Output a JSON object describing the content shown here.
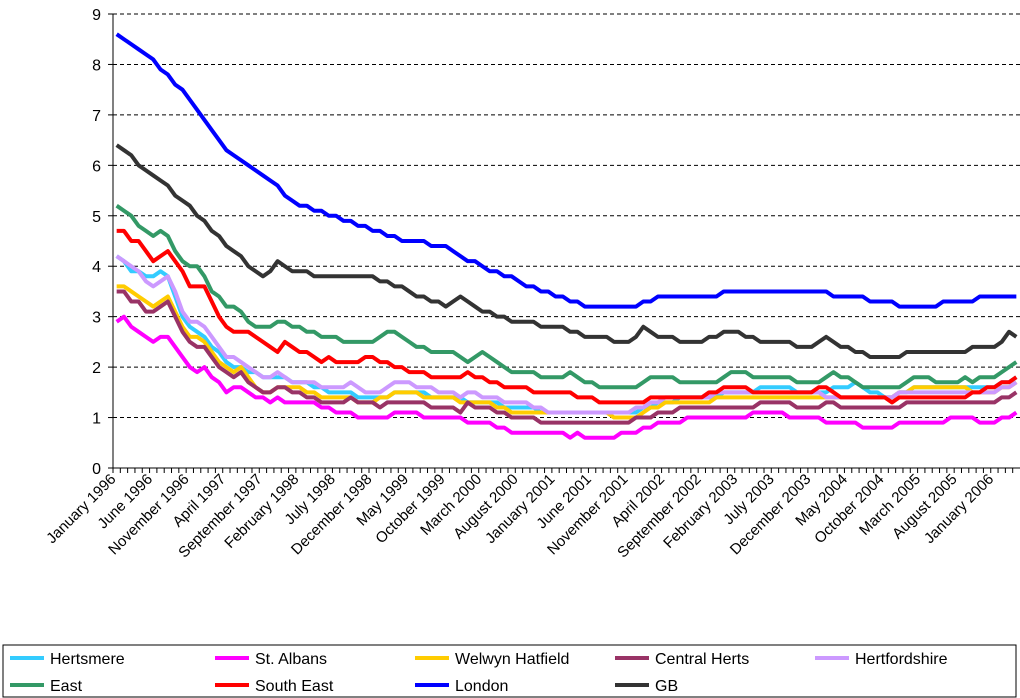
{
  "chart_data": {
    "type": "line",
    "categories": [
      "January 1996",
      null,
      null,
      null,
      null,
      "June 1996",
      null,
      null,
      null,
      null,
      "November 1996",
      null,
      null,
      null,
      null,
      "April 1997",
      null,
      null,
      null,
      null,
      "September 1997",
      null,
      null,
      null,
      null,
      "February 1998",
      null,
      null,
      null,
      null,
      "July 1998",
      null,
      null,
      null,
      null,
      "December 1998",
      null,
      null,
      null,
      null,
      "May 1999",
      null,
      null,
      null,
      null,
      "October 1999",
      null,
      null,
      null,
      null,
      "March 2000",
      null,
      null,
      null,
      null,
      "August 2000",
      null,
      null,
      null,
      null,
      "January 2001",
      null,
      null,
      null,
      null,
      "June 2001",
      null,
      null,
      null,
      null,
      "November 2001",
      null,
      null,
      null,
      null,
      "April 2002",
      null,
      null,
      null,
      null,
      "September 2002",
      null,
      null,
      null,
      null,
      "February 2003",
      null,
      null,
      null,
      null,
      "July 2003",
      null,
      null,
      null,
      null,
      "December 2003",
      null,
      null,
      null,
      null,
      "May 2004",
      null,
      null,
      null,
      null,
      "October 2004",
      null,
      null,
      null,
      null,
      "March 2005",
      null,
      null,
      null,
      null,
      "August 2005",
      null,
      null,
      null,
      null,
      "January 2006",
      null,
      null,
      null
    ],
    "ylim": [
      0,
      9
    ],
    "yticks": [
      0,
      1,
      2,
      3,
      4,
      5,
      6,
      7,
      8,
      9
    ],
    "grid": true,
    "legend": "bottom",
    "series": [
      {
        "name": "Hertsmere",
        "color": "#33ccff",
        "values": [
          4.2,
          4.1,
          3.9,
          3.9,
          3.8,
          3.8,
          3.9,
          3.8,
          3.4,
          3.0,
          2.8,
          2.7,
          2.6,
          2.4,
          2.3,
          2.1,
          2.0,
          2.0,
          1.9,
          1.9,
          1.8,
          1.8,
          1.8,
          1.8,
          1.7,
          1.7,
          1.7,
          1.6,
          1.6,
          1.5,
          1.5,
          1.5,
          1.5,
          1.4,
          1.4,
          1.4,
          1.4,
          1.4,
          1.5,
          1.5,
          1.5,
          1.5,
          1.5,
          1.4,
          1.4,
          1.4,
          1.4,
          1.4,
          1.3,
          1.3,
          1.3,
          1.3,
          1.3,
          1.2,
          1.2,
          1.2,
          1.2,
          1.2,
          1.1,
          1.1,
          1.1,
          1.1,
          1.1,
          1.1,
          1.1,
          1.1,
          1.1,
          1.1,
          1.1,
          1.1,
          1.1,
          1.1,
          1.2,
          1.2,
          1.3,
          1.3,
          1.3,
          1.4,
          1.4,
          1.4,
          1.4,
          1.4,
          1.4,
          1.5,
          1.5,
          1.5,
          1.5,
          1.5,
          1.6,
          1.6,
          1.6,
          1.6,
          1.6,
          1.5,
          1.5,
          1.5,
          1.5,
          1.5,
          1.6,
          1.6,
          1.6,
          1.7,
          1.6,
          1.5,
          1.5,
          1.4,
          1.4,
          1.5,
          1.5,
          1.6,
          1.6,
          1.6,
          1.6,
          1.6,
          1.6,
          1.6,
          1.6,
          1.6,
          1.6,
          1.6,
          1.6,
          1.7,
          1.7,
          1.8
        ]
      },
      {
        "name": "St. Albans",
        "color": "#ff00ff",
        "values": [
          2.9,
          3.0,
          2.8,
          2.7,
          2.6,
          2.5,
          2.6,
          2.6,
          2.4,
          2.2,
          2.0,
          1.9,
          2.0,
          1.8,
          1.7,
          1.5,
          1.6,
          1.6,
          1.5,
          1.4,
          1.4,
          1.3,
          1.4,
          1.3,
          1.3,
          1.3,
          1.3,
          1.3,
          1.2,
          1.2,
          1.1,
          1.1,
          1.1,
          1.0,
          1.0,
          1.0,
          1.0,
          1.0,
          1.1,
          1.1,
          1.1,
          1.1,
          1.0,
          1.0,
          1.0,
          1.0,
          1.0,
          1.0,
          0.9,
          0.9,
          0.9,
          0.9,
          0.8,
          0.8,
          0.7,
          0.7,
          0.7,
          0.7,
          0.7,
          0.7,
          0.7,
          0.7,
          0.6,
          0.7,
          0.6,
          0.6,
          0.6,
          0.6,
          0.6,
          0.7,
          0.7,
          0.7,
          0.8,
          0.8,
          0.9,
          0.9,
          0.9,
          0.9,
          1.0,
          1.0,
          1.0,
          1.0,
          1.0,
          1.0,
          1.0,
          1.0,
          1.0,
          1.1,
          1.1,
          1.1,
          1.1,
          1.1,
          1.0,
          1.0,
          1.0,
          1.0,
          1.0,
          0.9,
          0.9,
          0.9,
          0.9,
          0.9,
          0.8,
          0.8,
          0.8,
          0.8,
          0.8,
          0.9,
          0.9,
          0.9,
          0.9,
          0.9,
          0.9,
          0.9,
          1.0,
          1.0,
          1.0,
          1.0,
          0.9,
          0.9,
          0.9,
          1.0,
          1.0,
          1.1
        ]
      },
      {
        "name": "Welwyn Hatfield",
        "color": "#ffcc00",
        "values": [
          3.6,
          3.6,
          3.5,
          3.4,
          3.3,
          3.2,
          3.3,
          3.4,
          3.1,
          2.8,
          2.6,
          2.6,
          2.5,
          2.3,
          2.1,
          2.0,
          1.9,
          2.0,
          1.8,
          1.6,
          1.5,
          1.5,
          1.6,
          1.6,
          1.6,
          1.6,
          1.5,
          1.5,
          1.4,
          1.4,
          1.4,
          1.4,
          1.4,
          1.3,
          1.3,
          1.3,
          1.4,
          1.4,
          1.5,
          1.5,
          1.5,
          1.5,
          1.4,
          1.4,
          1.4,
          1.4,
          1.4,
          1.3,
          1.3,
          1.3,
          1.3,
          1.3,
          1.2,
          1.2,
          1.1,
          1.1,
          1.1,
          1.1,
          1.1,
          1.1,
          1.1,
          1.1,
          1.1,
          1.1,
          1.1,
          1.1,
          1.1,
          1.1,
          1.0,
          1.0,
          1.0,
          1.0,
          1.1,
          1.2,
          1.2,
          1.3,
          1.3,
          1.3,
          1.3,
          1.3,
          1.3,
          1.3,
          1.4,
          1.4,
          1.4,
          1.4,
          1.4,
          1.4,
          1.4,
          1.4,
          1.4,
          1.4,
          1.4,
          1.4,
          1.4,
          1.4,
          1.4,
          1.4,
          1.4,
          1.4,
          1.4,
          1.4,
          1.4,
          1.4,
          1.4,
          1.4,
          1.4,
          1.5,
          1.5,
          1.6,
          1.6,
          1.6,
          1.6,
          1.6,
          1.6,
          1.6,
          1.6,
          1.5,
          1.5,
          1.5,
          1.5,
          1.6,
          1.6,
          1.7
        ]
      },
      {
        "name": "Central Herts",
        "color": "#993366",
        "values": [
          3.5,
          3.5,
          3.3,
          3.3,
          3.1,
          3.1,
          3.2,
          3.3,
          3.0,
          2.7,
          2.5,
          2.4,
          2.4,
          2.2,
          2.0,
          1.9,
          1.8,
          1.9,
          1.7,
          1.6,
          1.5,
          1.5,
          1.6,
          1.6,
          1.5,
          1.5,
          1.4,
          1.4,
          1.3,
          1.3,
          1.3,
          1.3,
          1.4,
          1.3,
          1.3,
          1.3,
          1.2,
          1.3,
          1.3,
          1.3,
          1.3,
          1.3,
          1.3,
          1.2,
          1.2,
          1.2,
          1.2,
          1.1,
          1.3,
          1.2,
          1.2,
          1.2,
          1.1,
          1.1,
          1.0,
          1.0,
          1.0,
          1.0,
          0.9,
          0.9,
          0.9,
          0.9,
          0.9,
          0.9,
          0.9,
          0.9,
          0.9,
          0.9,
          0.9,
          0.9,
          0.9,
          1.0,
          1.0,
          1.0,
          1.1,
          1.1,
          1.1,
          1.2,
          1.2,
          1.2,
          1.2,
          1.2,
          1.2,
          1.2,
          1.2,
          1.2,
          1.2,
          1.2,
          1.3,
          1.3,
          1.3,
          1.3,
          1.3,
          1.2,
          1.2,
          1.2,
          1.2,
          1.3,
          1.3,
          1.2,
          1.2,
          1.2,
          1.2,
          1.2,
          1.2,
          1.2,
          1.2,
          1.2,
          1.3,
          1.3,
          1.3,
          1.3,
          1.3,
          1.3,
          1.3,
          1.3,
          1.3,
          1.3,
          1.3,
          1.3,
          1.3,
          1.4,
          1.4,
          1.5
        ]
      },
      {
        "name": "Hertfordshire",
        "color": "#cc99ff",
        "values": [
          4.2,
          4.1,
          4.0,
          3.9,
          3.7,
          3.6,
          3.7,
          3.8,
          3.5,
          3.1,
          2.9,
          2.9,
          2.8,
          2.6,
          2.4,
          2.2,
          2.2,
          2.1,
          2.0,
          1.9,
          1.8,
          1.8,
          1.9,
          1.8,
          1.7,
          1.7,
          1.7,
          1.7,
          1.6,
          1.6,
          1.6,
          1.6,
          1.7,
          1.6,
          1.5,
          1.5,
          1.5,
          1.6,
          1.7,
          1.7,
          1.7,
          1.6,
          1.6,
          1.6,
          1.5,
          1.5,
          1.5,
          1.4,
          1.5,
          1.5,
          1.4,
          1.4,
          1.4,
          1.3,
          1.3,
          1.3,
          1.3,
          1.2,
          1.2,
          1.1,
          1.1,
          1.1,
          1.1,
          1.1,
          1.1,
          1.1,
          1.1,
          1.1,
          1.1,
          1.1,
          1.1,
          1.2,
          1.2,
          1.3,
          1.3,
          1.4,
          1.4,
          1.4,
          1.4,
          1.4,
          1.4,
          1.4,
          1.5,
          1.5,
          1.5,
          1.5,
          1.5,
          1.5,
          1.5,
          1.5,
          1.5,
          1.5,
          1.5,
          1.5,
          1.5,
          1.5,
          1.5,
          1.4,
          1.4,
          1.4,
          1.4,
          1.4,
          1.4,
          1.4,
          1.4,
          1.4,
          1.4,
          1.5,
          1.5,
          1.5,
          1.5,
          1.5,
          1.5,
          1.5,
          1.5,
          1.5,
          1.5,
          1.5,
          1.5,
          1.5,
          1.5,
          1.6,
          1.6,
          1.7
        ]
      },
      {
        "name": "East",
        "color": "#339966",
        "values": [
          5.2,
          5.1,
          5.0,
          4.8,
          4.7,
          4.6,
          4.7,
          4.6,
          4.3,
          4.1,
          4.0,
          4.0,
          3.8,
          3.5,
          3.4,
          3.2,
          3.2,
          3.1,
          2.9,
          2.8,
          2.8,
          2.8,
          2.9,
          2.9,
          2.8,
          2.8,
          2.7,
          2.7,
          2.6,
          2.6,
          2.6,
          2.5,
          2.5,
          2.5,
          2.5,
          2.5,
          2.6,
          2.7,
          2.7,
          2.6,
          2.5,
          2.4,
          2.4,
          2.3,
          2.3,
          2.3,
          2.3,
          2.2,
          2.1,
          2.2,
          2.3,
          2.2,
          2.1,
          2.0,
          1.9,
          1.9,
          1.9,
          1.9,
          1.8,
          1.8,
          1.8,
          1.8,
          1.9,
          1.8,
          1.7,
          1.7,
          1.6,
          1.6,
          1.6,
          1.6,
          1.6,
          1.6,
          1.7,
          1.8,
          1.8,
          1.8,
          1.8,
          1.7,
          1.7,
          1.7,
          1.7,
          1.7,
          1.7,
          1.8,
          1.9,
          1.9,
          1.9,
          1.8,
          1.8,
          1.8,
          1.8,
          1.8,
          1.8,
          1.7,
          1.7,
          1.7,
          1.7,
          1.8,
          1.9,
          1.8,
          1.8,
          1.7,
          1.6,
          1.6,
          1.6,
          1.6,
          1.6,
          1.6,
          1.7,
          1.8,
          1.8,
          1.8,
          1.7,
          1.7,
          1.7,
          1.7,
          1.8,
          1.7,
          1.8,
          1.8,
          1.8,
          1.9,
          2.0,
          2.1
        ]
      },
      {
        "name": "South East",
        "color": "#ff0000",
        "values": [
          4.7,
          4.7,
          4.5,
          4.5,
          4.3,
          4.1,
          4.2,
          4.3,
          4.1,
          3.9,
          3.6,
          3.6,
          3.6,
          3.3,
          3.0,
          2.8,
          2.7,
          2.7,
          2.7,
          2.6,
          2.5,
          2.4,
          2.3,
          2.5,
          2.4,
          2.3,
          2.3,
          2.2,
          2.1,
          2.2,
          2.1,
          2.1,
          2.1,
          2.1,
          2.2,
          2.2,
          2.1,
          2.1,
          2.0,
          2.0,
          1.9,
          1.9,
          1.9,
          1.8,
          1.8,
          1.8,
          1.8,
          1.8,
          1.9,
          1.8,
          1.8,
          1.7,
          1.7,
          1.6,
          1.6,
          1.6,
          1.6,
          1.5,
          1.5,
          1.5,
          1.5,
          1.5,
          1.5,
          1.4,
          1.4,
          1.4,
          1.3,
          1.3,
          1.3,
          1.3,
          1.3,
          1.3,
          1.3,
          1.4,
          1.4,
          1.4,
          1.4,
          1.4,
          1.4,
          1.4,
          1.4,
          1.5,
          1.5,
          1.6,
          1.6,
          1.6,
          1.6,
          1.5,
          1.5,
          1.5,
          1.5,
          1.5,
          1.5,
          1.5,
          1.5,
          1.5,
          1.6,
          1.6,
          1.5,
          1.4,
          1.4,
          1.4,
          1.4,
          1.4,
          1.4,
          1.4,
          1.3,
          1.4,
          1.4,
          1.4,
          1.4,
          1.4,
          1.4,
          1.4,
          1.4,
          1.4,
          1.4,
          1.5,
          1.5,
          1.6,
          1.6,
          1.7,
          1.7,
          1.8
        ]
      },
      {
        "name": "London",
        "color": "#0000ff",
        "values": [
          8.6,
          8.5,
          8.4,
          8.3,
          8.2,
          8.1,
          7.9,
          7.8,
          7.6,
          7.5,
          7.3,
          7.1,
          6.9,
          6.7,
          6.5,
          6.3,
          6.2,
          6.1,
          6.0,
          5.9,
          5.8,
          5.7,
          5.6,
          5.4,
          5.3,
          5.2,
          5.2,
          5.1,
          5.1,
          5.0,
          5.0,
          4.9,
          4.9,
          4.8,
          4.8,
          4.7,
          4.7,
          4.6,
          4.6,
          4.5,
          4.5,
          4.5,
          4.5,
          4.4,
          4.4,
          4.4,
          4.3,
          4.2,
          4.1,
          4.1,
          4.0,
          3.9,
          3.9,
          3.8,
          3.8,
          3.7,
          3.6,
          3.6,
          3.5,
          3.5,
          3.4,
          3.4,
          3.3,
          3.3,
          3.2,
          3.2,
          3.2,
          3.2,
          3.2,
          3.2,
          3.2,
          3.2,
          3.3,
          3.3,
          3.4,
          3.4,
          3.4,
          3.4,
          3.4,
          3.4,
          3.4,
          3.4,
          3.4,
          3.5,
          3.5,
          3.5,
          3.5,
          3.5,
          3.5,
          3.5,
          3.5,
          3.5,
          3.5,
          3.5,
          3.5,
          3.5,
          3.5,
          3.5,
          3.4,
          3.4,
          3.4,
          3.4,
          3.4,
          3.3,
          3.3,
          3.3,
          3.3,
          3.2,
          3.2,
          3.2,
          3.2,
          3.2,
          3.2,
          3.3,
          3.3,
          3.3,
          3.3,
          3.3,
          3.4,
          3.4,
          3.4,
          3.4,
          3.4,
          3.4
        ]
      },
      {
        "name": "GB",
        "color": "#333333",
        "values": [
          6.4,
          6.3,
          6.2,
          6.0,
          5.9,
          5.8,
          5.7,
          5.6,
          5.4,
          5.3,
          5.2,
          5.0,
          4.9,
          4.7,
          4.6,
          4.4,
          4.3,
          4.2,
          4.0,
          3.9,
          3.8,
          3.9,
          4.1,
          4.0,
          3.9,
          3.9,
          3.9,
          3.8,
          3.8,
          3.8,
          3.8,
          3.8,
          3.8,
          3.8,
          3.8,
          3.8,
          3.7,
          3.7,
          3.6,
          3.6,
          3.5,
          3.4,
          3.4,
          3.3,
          3.3,
          3.2,
          3.3,
          3.4,
          3.3,
          3.2,
          3.1,
          3.1,
          3.0,
          3.0,
          2.9,
          2.9,
          2.9,
          2.9,
          2.8,
          2.8,
          2.8,
          2.8,
          2.7,
          2.7,
          2.6,
          2.6,
          2.6,
          2.6,
          2.5,
          2.5,
          2.5,
          2.6,
          2.8,
          2.7,
          2.6,
          2.6,
          2.6,
          2.5,
          2.5,
          2.5,
          2.5,
          2.6,
          2.6,
          2.7,
          2.7,
          2.7,
          2.6,
          2.6,
          2.5,
          2.5,
          2.5,
          2.5,
          2.5,
          2.4,
          2.4,
          2.4,
          2.5,
          2.6,
          2.5,
          2.4,
          2.4,
          2.3,
          2.3,
          2.2,
          2.2,
          2.2,
          2.2,
          2.2,
          2.3,
          2.3,
          2.3,
          2.3,
          2.3,
          2.3,
          2.3,
          2.3,
          2.3,
          2.4,
          2.4,
          2.4,
          2.4,
          2.5,
          2.7,
          2.6
        ]
      }
    ]
  }
}
